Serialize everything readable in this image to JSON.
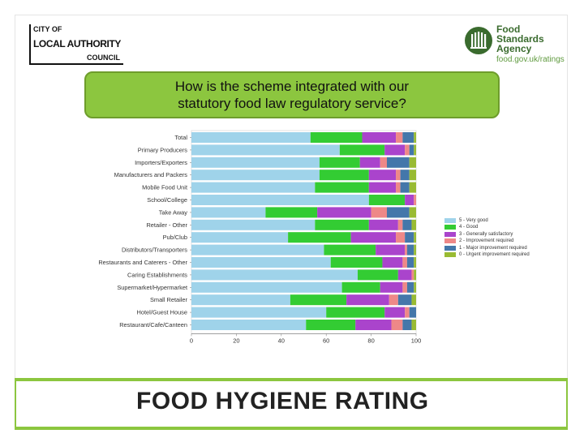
{
  "header": {
    "council_logo": {
      "line1": "CITY OF",
      "line2": "LOCAL AUTHORITY",
      "line3": "COUNCIL"
    },
    "fsa_logo": {
      "line1": "Food",
      "line2": "Standards",
      "line3": "Agency",
      "url": "food.gov.uk/ratings"
    }
  },
  "question": {
    "line1": "How is the scheme integrated with our",
    "line2": "statutory food law regulatory service?"
  },
  "footer": {
    "text": "FOOD HYGIENE RATING"
  },
  "colors": {
    "slide_border": "#e4e4e4",
    "question_fill": "#8cc63f",
    "footer_band": "#8cc63f",
    "fsa_green": "#3a6b2e"
  },
  "chart_data": {
    "type": "bar",
    "orientation": "horizontal",
    "stacked": true,
    "categories": [
      "Total",
      "Primary Producers",
      "Importers/Exporters",
      "Manufacturers and Packers",
      "Mobile Food Unit",
      "School/College",
      "Take Away",
      "Retailer - Other",
      "Pub/Club",
      "Distributors/Transporters",
      "Restaurants and Caterers - Other",
      "Caring Establishments",
      "Supermarket/Hypermarket",
      "Small Retailer",
      "Hotel/Guest House",
      "Restaurant/Cafe/Canteen"
    ],
    "series": [
      {
        "name": "5 - Very good",
        "color": "#9fd3ea",
        "values": [
          53,
          66,
          57,
          57,
          55,
          79,
          33,
          55,
          43,
          59,
          62,
          74,
          67,
          44,
          60,
          51
        ]
      },
      {
        "name": "4 - Good",
        "color": "#33cc33",
        "values": [
          23,
          20,
          18,
          22,
          24,
          16,
          23,
          24,
          28,
          23,
          23,
          18,
          17,
          25,
          26,
          22
        ]
      },
      {
        "name": "3 - Generally satisfactory",
        "color": "#aa44cc",
        "values": [
          15,
          9,
          9,
          12,
          12,
          4,
          24,
          13,
          20,
          13,
          9,
          6,
          10,
          19,
          9,
          16
        ]
      },
      {
        "name": "2 - Improvement required",
        "color": "#ee8888",
        "values": [
          3,
          2,
          3,
          2,
          2,
          1,
          7,
          2,
          4,
          1,
          2,
          1,
          2,
          4,
          2,
          5
        ]
      },
      {
        "name": "1 - Major improvement required",
        "color": "#4477aa",
        "values": [
          5,
          2,
          10,
          4,
          4,
          0,
          10,
          4,
          4,
          3,
          3,
          0,
          3,
          6,
          3,
          4
        ]
      },
      {
        "name": "0 - Urgent improvement required",
        "color": "#99bb33",
        "values": [
          1,
          1,
          3,
          3,
          3,
          0,
          3,
          2,
          1,
          1,
          1,
          1,
          1,
          2,
          0,
          2
        ]
      }
    ],
    "xlim": [
      0,
      100
    ],
    "xticks": [
      0,
      20,
      40,
      60,
      80,
      100
    ],
    "title": "",
    "xlabel": "",
    "ylabel": "",
    "grid": false,
    "legend_position": "right"
  }
}
